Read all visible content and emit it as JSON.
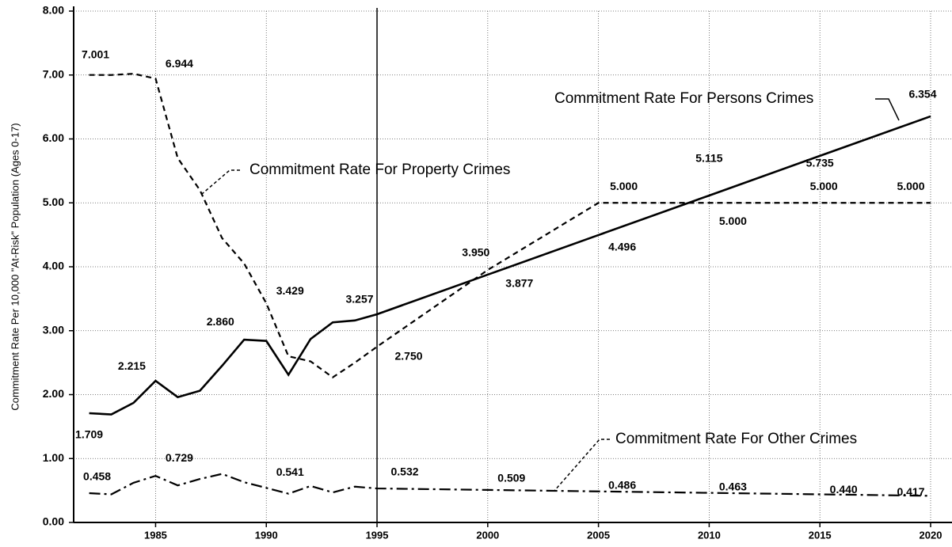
{
  "chart_data": {
    "type": "line",
    "ylabel": "Commitment Rate Per 10,000 \"At-Risk\" Population (Ages 0-17)",
    "x": [
      1982,
      1983,
      1984,
      1985,
      1986,
      1987,
      1988,
      1989,
      1990,
      1991,
      1992,
      1993,
      1994,
      1995,
      2000,
      2005,
      2010,
      2015,
      2020
    ],
    "series": [
      {
        "name": "Commitment Rate For Persons Crimes",
        "color": "#000000",
        "dash": "solid",
        "values": [
          1.709,
          1.69,
          1.87,
          2.215,
          1.96,
          2.06,
          2.45,
          2.86,
          2.84,
          2.31,
          2.87,
          3.13,
          3.16,
          3.257,
          3.877,
          4.496,
          5.115,
          5.735,
          6.354
        ],
        "value_labels": [
          "1.709",
          null,
          null,
          "2.215",
          null,
          null,
          null,
          "2.860",
          null,
          null,
          null,
          null,
          null,
          "3.257",
          "3.877",
          "4.496",
          "5.115",
          "5.735",
          "6.354"
        ]
      },
      {
        "name": "Commitment Rate For Property Crimes",
        "color": "#000000",
        "dash": "dashed",
        "values": [
          7.001,
          7.0,
          7.02,
          6.944,
          5.7,
          5.2,
          4.45,
          4.05,
          3.429,
          2.6,
          2.52,
          2.27,
          2.5,
          2.75,
          3.95,
          5.0,
          5.0,
          5.0,
          5.0
        ],
        "value_labels": [
          "7.001",
          null,
          null,
          "6.944",
          null,
          null,
          null,
          null,
          "3.429",
          null,
          null,
          null,
          null,
          "2.750",
          "3.950",
          "5.000",
          "5.000",
          "5.000",
          "5.000"
        ]
      },
      {
        "name": "Commitment Rate For Other Crimes",
        "color": "#000000",
        "dash": "dashdot",
        "values": [
          0.458,
          0.44,
          0.62,
          0.729,
          0.58,
          0.68,
          0.76,
          0.63,
          0.541,
          0.45,
          0.57,
          0.47,
          0.56,
          0.532,
          0.509,
          0.486,
          0.463,
          0.44,
          0.417
        ],
        "value_labels": [
          "0.458",
          null,
          null,
          "0.729",
          null,
          null,
          null,
          null,
          "0.541",
          null,
          null,
          null,
          null,
          "0.532",
          "0.509",
          "0.486",
          "0.463",
          "0.440",
          "0.417"
        ]
      }
    ],
    "xlim": [
      1981.3,
      2020
    ],
    "xticks": [
      1985,
      1990,
      1995,
      2000,
      2005,
      2010,
      2015,
      2020
    ],
    "ylim": [
      0,
      8
    ],
    "yticks": [
      {
        "value": 0,
        "label": "0.00"
      },
      {
        "value": 1,
        "label": "1.00"
      },
      {
        "value": 2,
        "label": "2.00"
      },
      {
        "value": 3,
        "label": "3.00"
      },
      {
        "value": 4,
        "label": "4.00"
      },
      {
        "value": 5,
        "label": "5.00"
      },
      {
        "value": 6,
        "label": "6.00"
      },
      {
        "value": 7,
        "label": "7.00"
      },
      {
        "value": 8,
        "label": "8.00"
      }
    ],
    "vline": 1995,
    "grid": true
  }
}
